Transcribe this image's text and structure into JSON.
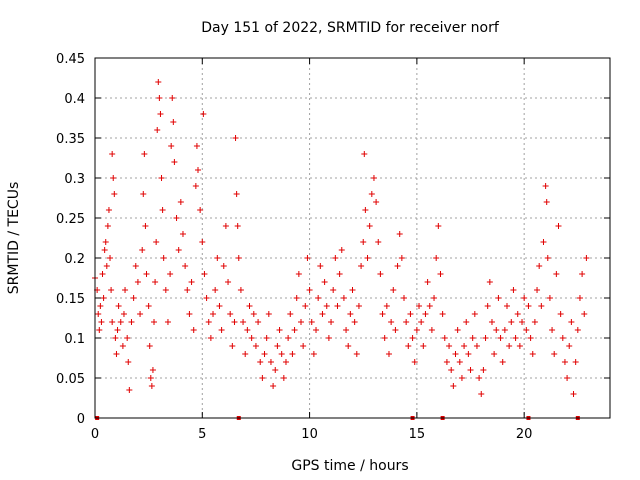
{
  "chart_data": {
    "type": "scatter",
    "title": "Day 151 of 2022, SRMTID for receiver norf",
    "xlabel": "GPS time / hours",
    "ylabel": "SRMTID / TECUs",
    "xlim": [
      0,
      24
    ],
    "ylim": [
      0,
      0.45
    ],
    "xticks": [
      0,
      5,
      10,
      15,
      20
    ],
    "xtick_labels": [
      "0",
      "5",
      "10",
      "15",
      "20"
    ],
    "yticks": [
      0,
      0.05,
      0.1,
      0.15,
      0.2,
      0.25,
      0.3,
      0.35,
      0.4,
      0.45
    ],
    "ytick_labels": [
      "0",
      "0.05",
      "0.1",
      "0.15",
      "0.2",
      "0.25",
      "0.3",
      "0.35",
      "0.4",
      "0.45"
    ],
    "grid": true,
    "marker": "plus",
    "marker_color": "#e00000",
    "series": [
      {
        "name": "SRMTID",
        "points": [
          [
            0.0,
            0.175
          ],
          [
            0.1,
            0.16
          ],
          [
            0.15,
            0.13
          ],
          [
            0.2,
            0.11
          ],
          [
            0.25,
            0.14
          ],
          [
            0.3,
            0.12
          ],
          [
            0.35,
            0.18
          ],
          [
            0.4,
            0.15
          ],
          [
            0.45,
            0.21
          ],
          [
            0.5,
            0.22
          ],
          [
            0.55,
            0.19
          ],
          [
            0.6,
            0.24
          ],
          [
            0.65,
            0.26
          ],
          [
            0.7,
            0.2
          ],
          [
            0.75,
            0.16
          ],
          [
            0.8,
            0.12
          ],
          [
            0.8,
            0.33
          ],
          [
            0.85,
            0.3
          ],
          [
            0.9,
            0.28
          ],
          [
            0.95,
            0.1
          ],
          [
            1.0,
            0.08
          ],
          [
            1.05,
            0.11
          ],
          [
            1.1,
            0.14
          ],
          [
            1.2,
            0.12
          ],
          [
            1.3,
            0.09
          ],
          [
            1.35,
            0.13
          ],
          [
            1.4,
            0.16
          ],
          [
            1.5,
            0.1
          ],
          [
            1.55,
            0.07
          ],
          [
            1.6,
            0.035
          ],
          [
            1.7,
            0.12
          ],
          [
            1.8,
            0.15
          ],
          [
            1.9,
            0.19
          ],
          [
            2.0,
            0.17
          ],
          [
            2.1,
            0.13
          ],
          [
            2.2,
            0.21
          ],
          [
            2.25,
            0.28
          ],
          [
            2.3,
            0.33
          ],
          [
            2.35,
            0.24
          ],
          [
            2.4,
            0.18
          ],
          [
            2.5,
            0.14
          ],
          [
            2.55,
            0.09
          ],
          [
            2.6,
            0.05
          ],
          [
            2.65,
            0.04
          ],
          [
            2.7,
            0.06
          ],
          [
            2.75,
            0.12
          ],
          [
            2.8,
            0.17
          ],
          [
            2.85,
            0.22
          ],
          [
            2.9,
            0.36
          ],
          [
            2.95,
            0.42
          ],
          [
            3.0,
            0.4
          ],
          [
            3.05,
            0.38
          ],
          [
            3.1,
            0.3
          ],
          [
            3.15,
            0.26
          ],
          [
            3.2,
            0.2
          ],
          [
            3.3,
            0.16
          ],
          [
            3.4,
            0.12
          ],
          [
            3.5,
            0.18
          ],
          [
            3.55,
            0.34
          ],
          [
            3.6,
            0.4
          ],
          [
            3.65,
            0.37
          ],
          [
            3.7,
            0.32
          ],
          [
            3.8,
            0.25
          ],
          [
            3.9,
            0.21
          ],
          [
            4.0,
            0.27
          ],
          [
            4.1,
            0.23
          ],
          [
            4.2,
            0.19
          ],
          [
            4.3,
            0.16
          ],
          [
            4.4,
            0.13
          ],
          [
            4.5,
            0.17
          ],
          [
            4.6,
            0.11
          ],
          [
            4.7,
            0.29
          ],
          [
            4.75,
            0.34
          ],
          [
            4.8,
            0.31
          ],
          [
            4.9,
            0.26
          ],
          [
            5.0,
            0.22
          ],
          [
            5.05,
            0.38
          ],
          [
            5.1,
            0.18
          ],
          [
            5.2,
            0.15
          ],
          [
            5.3,
            0.12
          ],
          [
            5.4,
            0.1
          ],
          [
            5.5,
            0.13
          ],
          [
            5.6,
            0.16
          ],
          [
            5.7,
            0.2
          ],
          [
            5.8,
            0.14
          ],
          [
            5.9,
            0.11
          ],
          [
            6.0,
            0.19
          ],
          [
            6.1,
            0.24
          ],
          [
            6.2,
            0.17
          ],
          [
            6.3,
            0.13
          ],
          [
            6.4,
            0.09
          ],
          [
            6.5,
            0.12
          ],
          [
            6.55,
            0.35
          ],
          [
            6.6,
            0.28
          ],
          [
            6.65,
            0.24
          ],
          [
            6.7,
            0.2
          ],
          [
            6.8,
            0.16
          ],
          [
            6.9,
            0.12
          ],
          [
            7.0,
            0.08
          ],
          [
            7.1,
            0.11
          ],
          [
            7.2,
            0.14
          ],
          [
            7.3,
            0.1
          ],
          [
            7.4,
            0.13
          ],
          [
            7.5,
            0.09
          ],
          [
            7.6,
            0.12
          ],
          [
            7.7,
            0.07
          ],
          [
            7.8,
            0.05
          ],
          [
            7.9,
            0.08
          ],
          [
            8.0,
            0.1
          ],
          [
            8.1,
            0.13
          ],
          [
            8.2,
            0.07
          ],
          [
            8.3,
            0.04
          ],
          [
            8.4,
            0.06
          ],
          [
            8.5,
            0.09
          ],
          [
            8.6,
            0.11
          ],
          [
            8.7,
            0.08
          ],
          [
            8.8,
            0.05
          ],
          [
            8.9,
            0.07
          ],
          [
            9.0,
            0.1
          ],
          [
            9.1,
            0.13
          ],
          [
            9.2,
            0.08
          ],
          [
            9.3,
            0.11
          ],
          [
            9.4,
            0.15
          ],
          [
            9.5,
            0.18
          ],
          [
            9.6,
            0.12
          ],
          [
            9.7,
            0.09
          ],
          [
            9.8,
            0.14
          ],
          [
            9.9,
            0.2
          ],
          [
            10.0,
            0.16
          ],
          [
            10.1,
            0.12
          ],
          [
            10.2,
            0.08
          ],
          [
            10.3,
            0.11
          ],
          [
            10.4,
            0.15
          ],
          [
            10.5,
            0.19
          ],
          [
            10.6,
            0.13
          ],
          [
            10.7,
            0.17
          ],
          [
            10.8,
            0.14
          ],
          [
            10.9,
            0.1
          ],
          [
            11.0,
            0.12
          ],
          [
            11.1,
            0.16
          ],
          [
            11.2,
            0.2
          ],
          [
            11.3,
            0.14
          ],
          [
            11.4,
            0.18
          ],
          [
            11.5,
            0.21
          ],
          [
            11.6,
            0.15
          ],
          [
            11.7,
            0.11
          ],
          [
            11.8,
            0.09
          ],
          [
            11.9,
            0.13
          ],
          [
            12.0,
            0.16
          ],
          [
            12.1,
            0.12
          ],
          [
            12.2,
            0.08
          ],
          [
            12.3,
            0.14
          ],
          [
            12.4,
            0.19
          ],
          [
            12.5,
            0.22
          ],
          [
            12.55,
            0.33
          ],
          [
            12.6,
            0.26
          ],
          [
            12.7,
            0.2
          ],
          [
            12.8,
            0.24
          ],
          [
            12.9,
            0.28
          ],
          [
            13.0,
            0.3
          ],
          [
            13.1,
            0.27
          ],
          [
            13.2,
            0.22
          ],
          [
            13.3,
            0.18
          ],
          [
            13.4,
            0.13
          ],
          [
            13.5,
            0.1
          ],
          [
            13.6,
            0.14
          ],
          [
            13.7,
            0.08
          ],
          [
            13.8,
            0.12
          ],
          [
            13.9,
            0.16
          ],
          [
            14.0,
            0.11
          ],
          [
            14.1,
            0.19
          ],
          [
            14.2,
            0.23
          ],
          [
            14.3,
            0.2
          ],
          [
            14.4,
            0.15
          ],
          [
            14.5,
            0.12
          ],
          [
            14.6,
            0.09
          ],
          [
            14.7,
            0.13
          ],
          [
            14.8,
            0.1
          ],
          [
            14.9,
            0.07
          ],
          [
            15.0,
            0.11
          ],
          [
            15.1,
            0.14
          ],
          [
            15.2,
            0.12
          ],
          [
            15.3,
            0.09
          ],
          [
            15.4,
            0.13
          ],
          [
            15.5,
            0.17
          ],
          [
            15.6,
            0.14
          ],
          [
            15.7,
            0.11
          ],
          [
            15.8,
            0.15
          ],
          [
            15.9,
            0.2
          ],
          [
            16.0,
            0.24
          ],
          [
            16.1,
            0.18
          ],
          [
            16.2,
            0.13
          ],
          [
            16.3,
            0.1
          ],
          [
            16.4,
            0.07
          ],
          [
            16.5,
            0.09
          ],
          [
            16.6,
            0.06
          ],
          [
            16.7,
            0.04
          ],
          [
            16.8,
            0.08
          ],
          [
            16.9,
            0.11
          ],
          [
            17.0,
            0.07
          ],
          [
            17.1,
            0.05
          ],
          [
            17.2,
            0.09
          ],
          [
            17.3,
            0.12
          ],
          [
            17.4,
            0.08
          ],
          [
            17.5,
            0.06
          ],
          [
            17.6,
            0.1
          ],
          [
            17.7,
            0.13
          ],
          [
            17.8,
            0.09
          ],
          [
            17.9,
            0.05
          ],
          [
            18.0,
            0.03
          ],
          [
            18.1,
            0.06
          ],
          [
            18.2,
            0.1
          ],
          [
            18.3,
            0.14
          ],
          [
            18.4,
            0.17
          ],
          [
            18.5,
            0.12
          ],
          [
            18.6,
            0.08
          ],
          [
            18.7,
            0.11
          ],
          [
            18.8,
            0.15
          ],
          [
            18.9,
            0.1
          ],
          [
            19.0,
            0.07
          ],
          [
            19.1,
            0.11
          ],
          [
            19.2,
            0.14
          ],
          [
            19.3,
            0.09
          ],
          [
            19.4,
            0.12
          ],
          [
            19.5,
            0.16
          ],
          [
            19.6,
            0.1
          ],
          [
            19.7,
            0.13
          ],
          [
            19.8,
            0.09
          ],
          [
            19.9,
            0.12
          ],
          [
            20.0,
            0.15
          ],
          [
            20.1,
            0.11
          ],
          [
            20.2,
            0.14
          ],
          [
            20.3,
            0.1
          ],
          [
            20.4,
            0.08
          ],
          [
            20.5,
            0.12
          ],
          [
            20.6,
            0.16
          ],
          [
            20.7,
            0.19
          ],
          [
            20.8,
            0.14
          ],
          [
            20.9,
            0.22
          ],
          [
            21.0,
            0.29
          ],
          [
            21.05,
            0.27
          ],
          [
            21.1,
            0.2
          ],
          [
            21.2,
            0.15
          ],
          [
            21.3,
            0.11
          ],
          [
            21.4,
            0.08
          ],
          [
            21.5,
            0.18
          ],
          [
            21.6,
            0.24
          ],
          [
            21.7,
            0.13
          ],
          [
            21.8,
            0.1
          ],
          [
            21.9,
            0.07
          ],
          [
            22.0,
            0.05
          ],
          [
            22.1,
            0.09
          ],
          [
            22.2,
            0.12
          ],
          [
            22.3,
            0.03
          ],
          [
            22.4,
            0.07
          ],
          [
            22.5,
            0.11
          ],
          [
            22.6,
            0.15
          ],
          [
            22.7,
            0.18
          ],
          [
            22.8,
            0.13
          ],
          [
            22.9,
            0.2
          ]
        ]
      }
    ],
    "zero_markers_x": [
      0.1,
      6.7,
      14.8,
      16.2,
      20.2,
      22.5
    ]
  }
}
